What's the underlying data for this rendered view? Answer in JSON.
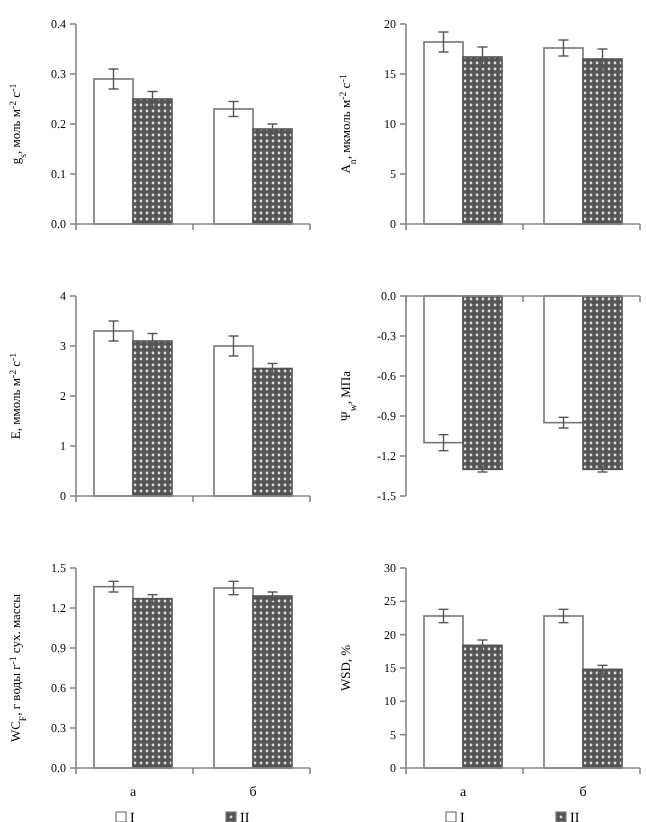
{
  "chart_data": [
    {
      "type": "bar",
      "ylabel": "g$_{s}$, моль м$^{-2}$ с$^{-1}$",
      "categories": [
        null,
        null
      ],
      "ylim": [
        0,
        0.4
      ],
      "yticks": [
        {
          "value": 0,
          "label": "0.0"
        },
        {
          "value": 0.1,
          "label": "0.1"
        },
        {
          "value": 0.2,
          "label": "0.2"
        },
        {
          "value": 0.3,
          "label": "0.3"
        },
        {
          "value": 0.4,
          "label": "0.4"
        }
      ],
      "tick_labels": "y",
      "legend": false,
      "series": [
        {
          "color": "#ffffff",
          "values": [
            0.29,
            0.23
          ],
          "errors": [
            0.02,
            0.015
          ]
        },
        {
          "color": "#555555",
          "values": [
            0.25,
            0.19
          ],
          "errors": [
            0.015,
            0.01
          ]
        }
      ]
    },
    {
      "type": "bar",
      "ylabel": "A$_{n}$, мкмоль м$^{-2}$ с$^{-1}$",
      "categories": [
        null,
        null
      ],
      "ylim": [
        0,
        20
      ],
      "yticks": [
        0,
        5,
        10,
        15,
        20
      ],
      "tick_labels": "y",
      "legend": false,
      "series": [
        {
          "color": "#ffffff",
          "values": [
            18.2,
            17.6
          ],
          "errors": [
            1,
            0.8
          ]
        },
        {
          "color": "#555555",
          "values": [
            16.7,
            16.5
          ],
          "errors": [
            1,
            1
          ]
        }
      ]
    },
    {
      "type": "bar",
      "ylabel": "E, ммоль м$^{-2}$ с$^{-1}$",
      "categories": [
        null,
        null
      ],
      "ylim": [
        0,
        4
      ],
      "yticks": [
        0,
        1,
        2,
        3,
        4
      ],
      "tick_labels": "y",
      "legend": false,
      "series": [
        {
          "color": "#ffffff",
          "values": [
            3.3,
            3.0
          ],
          "errors": [
            0.2,
            0.2
          ]
        },
        {
          "color": "#555555",
          "values": [
            3.1,
            2.55
          ],
          "errors": [
            0.15,
            0.1
          ]
        }
      ]
    },
    {
      "type": "bar",
      "ylabel": "Ψ$_{w}$, МПа",
      "categories": [
        null,
        null
      ],
      "ylim": [
        -1.5,
        0
      ],
      "yticks": [
        {
          "value": 0,
          "label": "0.0"
        },
        {
          "value": -0.3,
          "label": "-0.3"
        },
        {
          "value": -0.6,
          "label": "-0.6"
        },
        {
          "value": -0.9,
          "label": "-0.9"
        },
        {
          "value": -1.2,
          "label": "-1.2"
        },
        {
          "value": -1.5,
          "label": "-1.5"
        }
      ],
      "tick_labels": "y",
      "legend": false,
      "series": [
        {
          "color": "#ffffff",
          "values": [
            -1.1,
            -0.95
          ],
          "errors": [
            0.06,
            0.04
          ]
        },
        {
          "color": "#555555",
          "values": [
            -1.3,
            -1.3
          ],
          "errors": [
            0.02,
            0.02
          ]
        }
      ]
    },
    {
      "type": "bar",
      "ylabel": "WC$_{F}$, г воды г$^{-1}$ сух. массы",
      "categories": [
        "а",
        "б"
      ],
      "ylim": [
        0,
        1.5
      ],
      "yticks": [
        {
          "value": 0,
          "label": "0.0"
        },
        {
          "value": 0.3,
          "label": "0.3"
        },
        {
          "value": 0.6,
          "label": "0.6"
        },
        {
          "value": 0.9,
          "label": "0.9"
        },
        {
          "value": 1.2,
          "label": "1.2"
        },
        {
          "value": 1.5,
          "label": "1.5"
        }
      ],
      "legend": "bottom",
      "series": [
        {
          "name": "I",
          "color": "#ffffff",
          "values": [
            1.36,
            1.35
          ],
          "errors": [
            0.04,
            0.05
          ]
        },
        {
          "name": "II",
          "color": "#555555",
          "values": [
            1.27,
            1.29
          ],
          "errors": [
            0.03,
            0.03
          ]
        }
      ]
    },
    {
      "type": "bar",
      "ylabel": "WSD, %",
      "categories": [
        "а",
        "б"
      ],
      "ylim": [
        0,
        30
      ],
      "yticks": [
        0,
        5,
        10,
        15,
        20,
        25,
        30
      ],
      "legend": "bottom",
      "series": [
        {
          "name": "I",
          "color": "#ffffff",
          "values": [
            22.8,
            22.8
          ],
          "errors": [
            1,
            1
          ]
        },
        {
          "name": "II",
          "color": "#555555",
          "values": [
            18.4,
            14.8
          ],
          "errors": [
            0.8,
            0.6
          ]
        }
      ]
    }
  ]
}
